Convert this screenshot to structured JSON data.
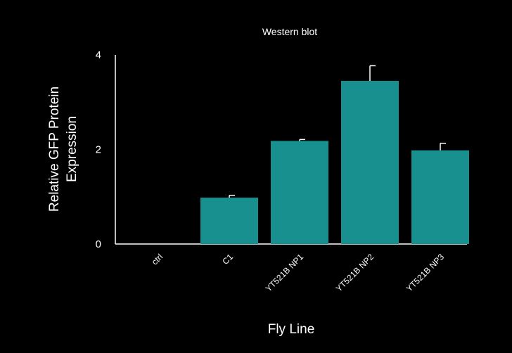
{
  "chart_data": {
    "type": "bar",
    "title": "Western blot",
    "xlabel": "Fly Line",
    "ylabel_lines": [
      "Relative GFP Protein",
      "Expression"
    ],
    "categories": [
      "ctrl",
      "C1",
      "YT521B NP1",
      "YT521B NP2",
      "YT521B NP3"
    ],
    "values": [
      0,
      0.98,
      2.18,
      3.45,
      1.98
    ],
    "errors": [
      0,
      0.05,
      0.03,
      0.32,
      0.15
    ],
    "ylim": [
      0,
      4
    ],
    "yticks": [
      0,
      2,
      4
    ],
    "grid": false,
    "bar_color": "#17908f",
    "background": "#000000",
    "text_color": "#ffffff"
  }
}
